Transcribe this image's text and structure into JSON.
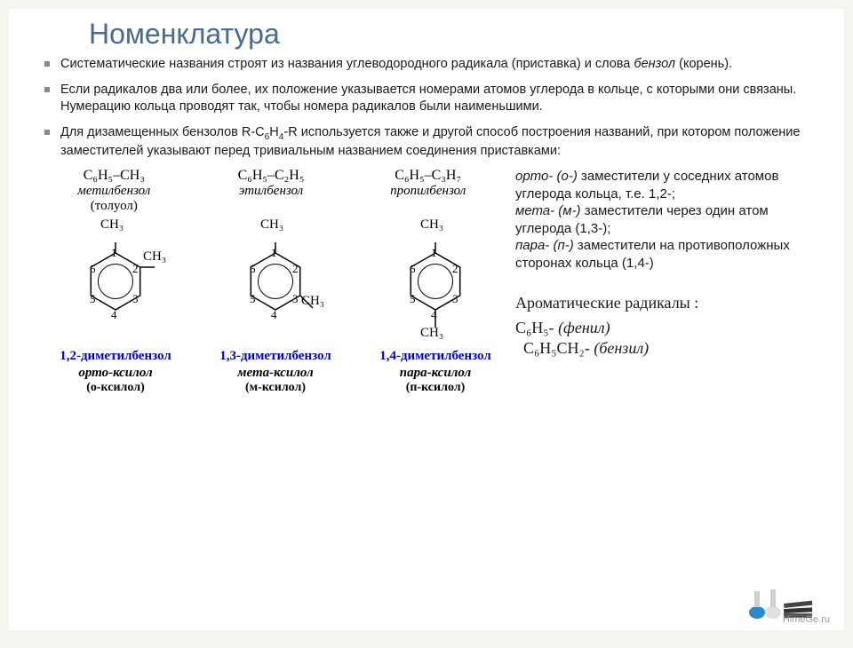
{
  "title": "Номенклатура",
  "bullets": [
    {
      "pre": "Систематические названия строят из названия углеводородного радикала (приставка) и слова ",
      "it": "бензол",
      "post": " (корень)."
    },
    {
      "pre": "Если радикалов два или более, их положение указывается номерами атомов углерода в кольце, с которыми они связаны. Нумерацию кольца проводят так, чтобы номера радикалов были наименьшими.",
      "it": "",
      "post": ""
    },
    {
      "pre": "Для дизамещенных бензолов R-C",
      "mid": "H",
      "post2": "-R используется также и другой способ построения названий, при котором положение заместителей указывают перед тривиальным названием соединения приставками:"
    }
  ],
  "formulas": [
    {
      "f": "C₆H₅–CH₃",
      "name": "метилбензол",
      "sub": "(толуол)"
    },
    {
      "f": "C₆H₅–C₂H₅",
      "name": "этилбензол",
      "sub": ""
    },
    {
      "f": "C₆H₅–C₃H₇",
      "name": "пропилбензол",
      "sub": ""
    }
  ],
  "side": {
    "ortho_pre": "орто- (о-)",
    "ortho_txt": " заместители у соседних атомов углерода кольца, т.е. 1,2-;",
    "meta_pre": "мета- (м-)",
    "meta_txt": " заместители через один атом углерода (1,3-);",
    "para_pre": "пара- (п-)",
    "para_txt": " заместители на противоположных сторонах кольца (1,4-)"
  },
  "radicals": {
    "title": "Ароматические радикалы :",
    "r1_f": "C₆H₅-",
    "r1_n": " (фенил)",
    "r2_f": "C₆H₅CH₂-",
    "r2_n": " (бензил)"
  },
  "structures": [
    {
      "name": "1,2-диметилбензол",
      "trivial": "орто-ксилол",
      "short": "(о-ксилол)",
      "sub2_pos": "r2"
    },
    {
      "name": "1,3-диметилбензол",
      "trivial": "мета-ксилол",
      "short": "(м-ксилол)",
      "sub2_pos": "r3"
    },
    {
      "name": "1,4-диметилбензол",
      "trivial": "пара-ксилол",
      "short": "(п-ксилол)",
      "sub2_pos": "r4"
    }
  ],
  "ring": {
    "nums": [
      "1",
      "2",
      "3",
      "4",
      "5",
      "6"
    ],
    "ch3": "CH₃",
    "colors": {
      "line": "#000000"
    }
  },
  "watermark": "HimеGe.ru"
}
